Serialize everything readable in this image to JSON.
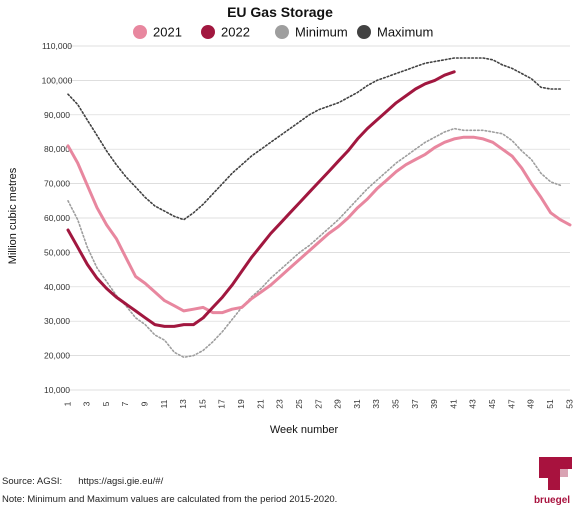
{
  "footer": {
    "source_label": "Source: AGSI:",
    "source_url": "https://agsi.gie.eu/#/",
    "note": "Note: Minimum and Maximum values are calculated from the period 2015-2020."
  },
  "logo": {
    "text": "bruegel",
    "color": "#a8123e"
  },
  "chart_data": {
    "type": "line",
    "title": "EU Gas Storage",
    "xlabel": "Week number",
    "ylabel": "Million cubic metres",
    "xlim": [
      1,
      53
    ],
    "ylim": [
      10000,
      110000
    ],
    "x_ticks": [
      1,
      3,
      5,
      7,
      9,
      11,
      13,
      15,
      17,
      19,
      21,
      23,
      25,
      27,
      29,
      31,
      33,
      35,
      37,
      39,
      41,
      43,
      45,
      47,
      49,
      51,
      53
    ],
    "y_ticks": [
      10000,
      20000,
      30000,
      40000,
      50000,
      60000,
      70000,
      80000,
      90000,
      100000,
      110000
    ],
    "y_tick_labels": [
      "10,000",
      "20,000",
      "30,000",
      "40,000",
      "50,000",
      "60,000",
      "70,000",
      "80,000",
      "90,000",
      "100,000",
      "110,000"
    ],
    "grid": "horizontal",
    "legend_position": "top",
    "series": [
      {
        "name": "2021",
        "color": "#e8879f",
        "style": "solid",
        "x": [
          1,
          2,
          3,
          4,
          5,
          6,
          7,
          8,
          9,
          10,
          11,
          12,
          13,
          14,
          15,
          16,
          17,
          18,
          19,
          20,
          21,
          22,
          23,
          24,
          25,
          26,
          27,
          28,
          29,
          30,
          31,
          32,
          33,
          34,
          35,
          36,
          37,
          38,
          39,
          40,
          41,
          42,
          43,
          44,
          45,
          46,
          47,
          48,
          49,
          50,
          51,
          52,
          53
        ],
        "y": [
          81000,
          76000,
          69500,
          63000,
          58000,
          54000,
          48500,
          43000,
          41000,
          38500,
          36000,
          34500,
          33000,
          33500,
          34000,
          32500,
          32500,
          33500,
          34000,
          36500,
          38500,
          40500,
          43000,
          45500,
          48000,
          50500,
          53000,
          55500,
          57500,
          60000,
          63000,
          65500,
          68500,
          71000,
          73500,
          75500,
          77000,
          78500,
          80500,
          82000,
          83000,
          83500,
          83500,
          83000,
          82000,
          80000,
          78000,
          74500,
          70000,
          66000,
          61500,
          59500,
          58000
        ]
      },
      {
        "name": "2022",
        "color": "#a1173f",
        "style": "solid",
        "x": [
          1,
          2,
          3,
          4,
          5,
          6,
          7,
          8,
          9,
          10,
          11,
          12,
          13,
          14,
          15,
          16,
          17,
          18,
          19,
          20,
          21,
          22,
          23,
          24,
          25,
          26,
          27,
          28,
          29,
          30,
          31,
          32,
          33,
          34,
          35,
          36,
          37,
          38,
          39,
          40,
          41
        ],
        "y": [
          56500,
          51500,
          46500,
          42500,
          39500,
          37000,
          35000,
          33000,
          31000,
          29000,
          28500,
          28500,
          29000,
          29000,
          31000,
          34000,
          37000,
          40500,
          44500,
          48500,
          52000,
          55500,
          58500,
          61500,
          64500,
          67500,
          70500,
          73500,
          76500,
          79500,
          83000,
          86000,
          88500,
          91000,
          93500,
          95500,
          97500,
          99000,
          100000,
          101500,
          102500
        ]
      },
      {
        "name": "Minimum",
        "color": "#9e9e9e",
        "style": "dotted",
        "x": [
          1,
          2,
          3,
          4,
          5,
          6,
          7,
          8,
          9,
          10,
          11,
          12,
          13,
          14,
          15,
          16,
          17,
          18,
          19,
          20,
          21,
          22,
          23,
          24,
          25,
          26,
          27,
          28,
          29,
          30,
          31,
          32,
          33,
          34,
          35,
          36,
          37,
          38,
          39,
          40,
          41,
          42,
          43,
          44,
          45,
          46,
          47,
          48,
          49,
          50,
          51,
          52
        ],
        "y": [
          65000,
          59500,
          51500,
          45500,
          41500,
          37500,
          34500,
          31000,
          29000,
          26000,
          24500,
          21000,
          19500,
          20000,
          21500,
          24000,
          27000,
          30500,
          34000,
          37000,
          39500,
          42500,
          45000,
          47500,
          50000,
          52000,
          54500,
          57000,
          59500,
          62500,
          65500,
          68500,
          71000,
          73500,
          76000,
          78000,
          80000,
          82000,
          83500,
          85000,
          86000,
          85500,
          85500,
          85500,
          85000,
          84500,
          82500,
          79500,
          77000,
          73000,
          70500,
          69500
        ]
      },
      {
        "name": "Maximum",
        "color": "#424242",
        "style": "dotted",
        "x": [
          1,
          2,
          3,
          4,
          5,
          6,
          7,
          8,
          9,
          10,
          11,
          12,
          13,
          14,
          15,
          16,
          17,
          18,
          19,
          20,
          21,
          22,
          23,
          24,
          25,
          26,
          27,
          28,
          29,
          30,
          31,
          32,
          33,
          34,
          35,
          36,
          37,
          38,
          39,
          40,
          41,
          42,
          43,
          44,
          45,
          46,
          47,
          48,
          49,
          50,
          51,
          52
        ],
        "y": [
          96000,
          93000,
          88500,
          84000,
          79500,
          75500,
          72000,
          69000,
          66000,
          63500,
          62000,
          60500,
          59500,
          61500,
          64000,
          67000,
          70000,
          73000,
          75500,
          78000,
          80000,
          82000,
          84000,
          86000,
          88000,
          90000,
          91500,
          92500,
          93500,
          95000,
          96500,
          98500,
          100000,
          101000,
          102000,
          103000,
          104000,
          105000,
          105500,
          106000,
          106500,
          106500,
          106500,
          106500,
          106000,
          104500,
          103500,
          102000,
          100500,
          98000,
          97500,
          97500
        ]
      }
    ]
  }
}
